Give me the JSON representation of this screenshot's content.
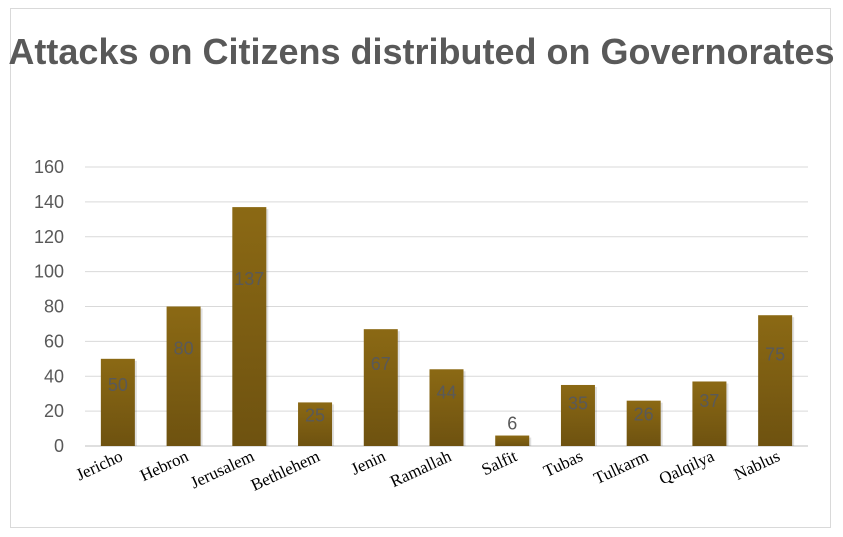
{
  "chart_data": {
    "type": "bar",
    "title": "Attacks on Citizens distributed on Governorates",
    "categories": [
      "Jericho",
      "Hebron",
      "Jerusalem",
      "Bethlehem",
      "Jenin",
      "Ramallah",
      "Salfit",
      "Tubas",
      "Tulkarm",
      "Qalqilya",
      "Nablus"
    ],
    "values": [
      50,
      80,
      137,
      25,
      67,
      44,
      6,
      35,
      26,
      37,
      75
    ],
    "data_labels": [
      "50",
      "80",
      "137",
      "25",
      "67",
      "44",
      "6",
      "35",
      "26",
      "37",
      "75"
    ],
    "yticks": [
      0,
      20,
      40,
      60,
      80,
      100,
      120,
      140,
      160
    ],
    "ylim": [
      0,
      160
    ],
    "grid": true,
    "legend": "none",
    "colors": {
      "bar_top": "#8b6914",
      "bar_bottom": "#6e5210",
      "grid": "#d9d9d9",
      "tick_text": "#595959"
    }
  }
}
